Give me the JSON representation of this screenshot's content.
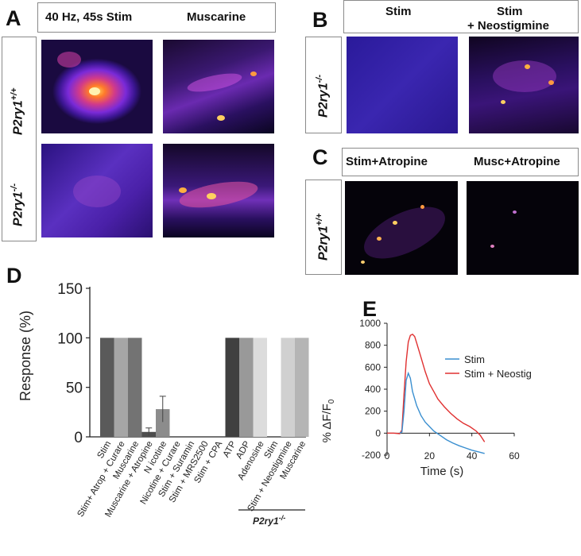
{
  "panels": {
    "A": {
      "letter": "A",
      "headers": [
        "40 Hz, 45s Stim",
        "Muscarine"
      ],
      "rows": [
        {
          "genotype": "P2ry1",
          "sup": "+/+"
        },
        {
          "genotype": "P2ry1",
          "sup": "-/-"
        }
      ]
    },
    "B": {
      "letter": "B",
      "headers": [
        "Stim",
        "Stim",
        "+ Neostigmine"
      ],
      "row": {
        "genotype": "P2ry1",
        "sup": "-/-"
      }
    },
    "C": {
      "letter": "C",
      "headers": [
        "Stim+Atropine",
        "Musc+Atropine"
      ],
      "row": {
        "genotype": "P2ry1",
        "sup": "+/+"
      }
    },
    "D": {
      "letter": "D"
    },
    "E": {
      "letter": "E"
    }
  },
  "chart_data": [
    {
      "panel": "D",
      "type": "bar",
      "ylabel": "Response (%)",
      "ylim": [
        0,
        150
      ],
      "yticks": [
        0,
        50,
        100,
        150
      ],
      "categories": [
        "Stim",
        "Stim+ Atrop + Curare",
        "Muscarine",
        "Muscarine + Atropine",
        "N icotine",
        "Nicotine + Curare",
        "Stim + Suramin",
        "Stim + MRS2500",
        "Stim + CPA",
        "ATP",
        "ADP",
        "Adenosine",
        "Stim",
        "Stim + Neostigmine",
        "Muscarine"
      ],
      "values": [
        100,
        100,
        100,
        5,
        28,
        0,
        0,
        0,
        0,
        100,
        100,
        100,
        0,
        100,
        100
      ],
      "errors": [
        0,
        0,
        0,
        4,
        13,
        0,
        0,
        0,
        0,
        0,
        0,
        0,
        0,
        0,
        0
      ],
      "colors": [
        "#5a5a5a",
        "#a6a6a6",
        "#737373",
        "#4d4d4d",
        "#8c8c8c",
        "#8c8c8c",
        "#8c8c8c",
        "#8c8c8c",
        "#8c8c8c",
        "#404040",
        "#999999",
        "#dcdcdc",
        "#dcdcdc",
        "#d0d0d0",
        "#b5b5b5"
      ],
      "group_label": {
        "genotype": "P2ry1",
        "sup": "-/-"
      }
    },
    {
      "panel": "E",
      "type": "line",
      "ylabel": "% ΔF/F",
      "ylabel_sub": "0",
      "xlabel": "Time (s)",
      "xlim": [
        0,
        60
      ],
      "ylim": [
        -200,
        1000
      ],
      "xticks": [
        0,
        20,
        40,
        60
      ],
      "yticks": [
        -200,
        0,
        200,
        400,
        600,
        800,
        1000
      ],
      "series": [
        {
          "name": "Stim",
          "color": "#3a8fd0",
          "x": [
            6,
            7,
            8,
            9,
            10,
            11,
            12,
            14,
            16,
            18,
            20,
            22,
            25,
            28,
            31,
            34,
            37,
            40,
            43,
            46
          ],
          "y": [
            0,
            10,
            200,
            480,
            545,
            500,
            380,
            250,
            160,
            100,
            60,
            20,
            -20,
            -60,
            -90,
            -115,
            -135,
            -155,
            -170,
            -185
          ]
        },
        {
          "name": "Stim + Neostig",
          "color": "#e03030",
          "x": [
            0,
            3,
            6,
            7,
            8,
            9,
            10,
            11,
            12,
            13,
            14,
            16,
            18,
            20,
            22,
            24,
            27,
            30,
            33,
            36,
            39,
            42,
            44,
            46
          ],
          "y": [
            0,
            0,
            -5,
            30,
            350,
            650,
            830,
            890,
            900,
            880,
            820,
            690,
            560,
            450,
            380,
            310,
            240,
            180,
            130,
            90,
            60,
            20,
            -20,
            -80
          ]
        }
      ]
    }
  ]
}
